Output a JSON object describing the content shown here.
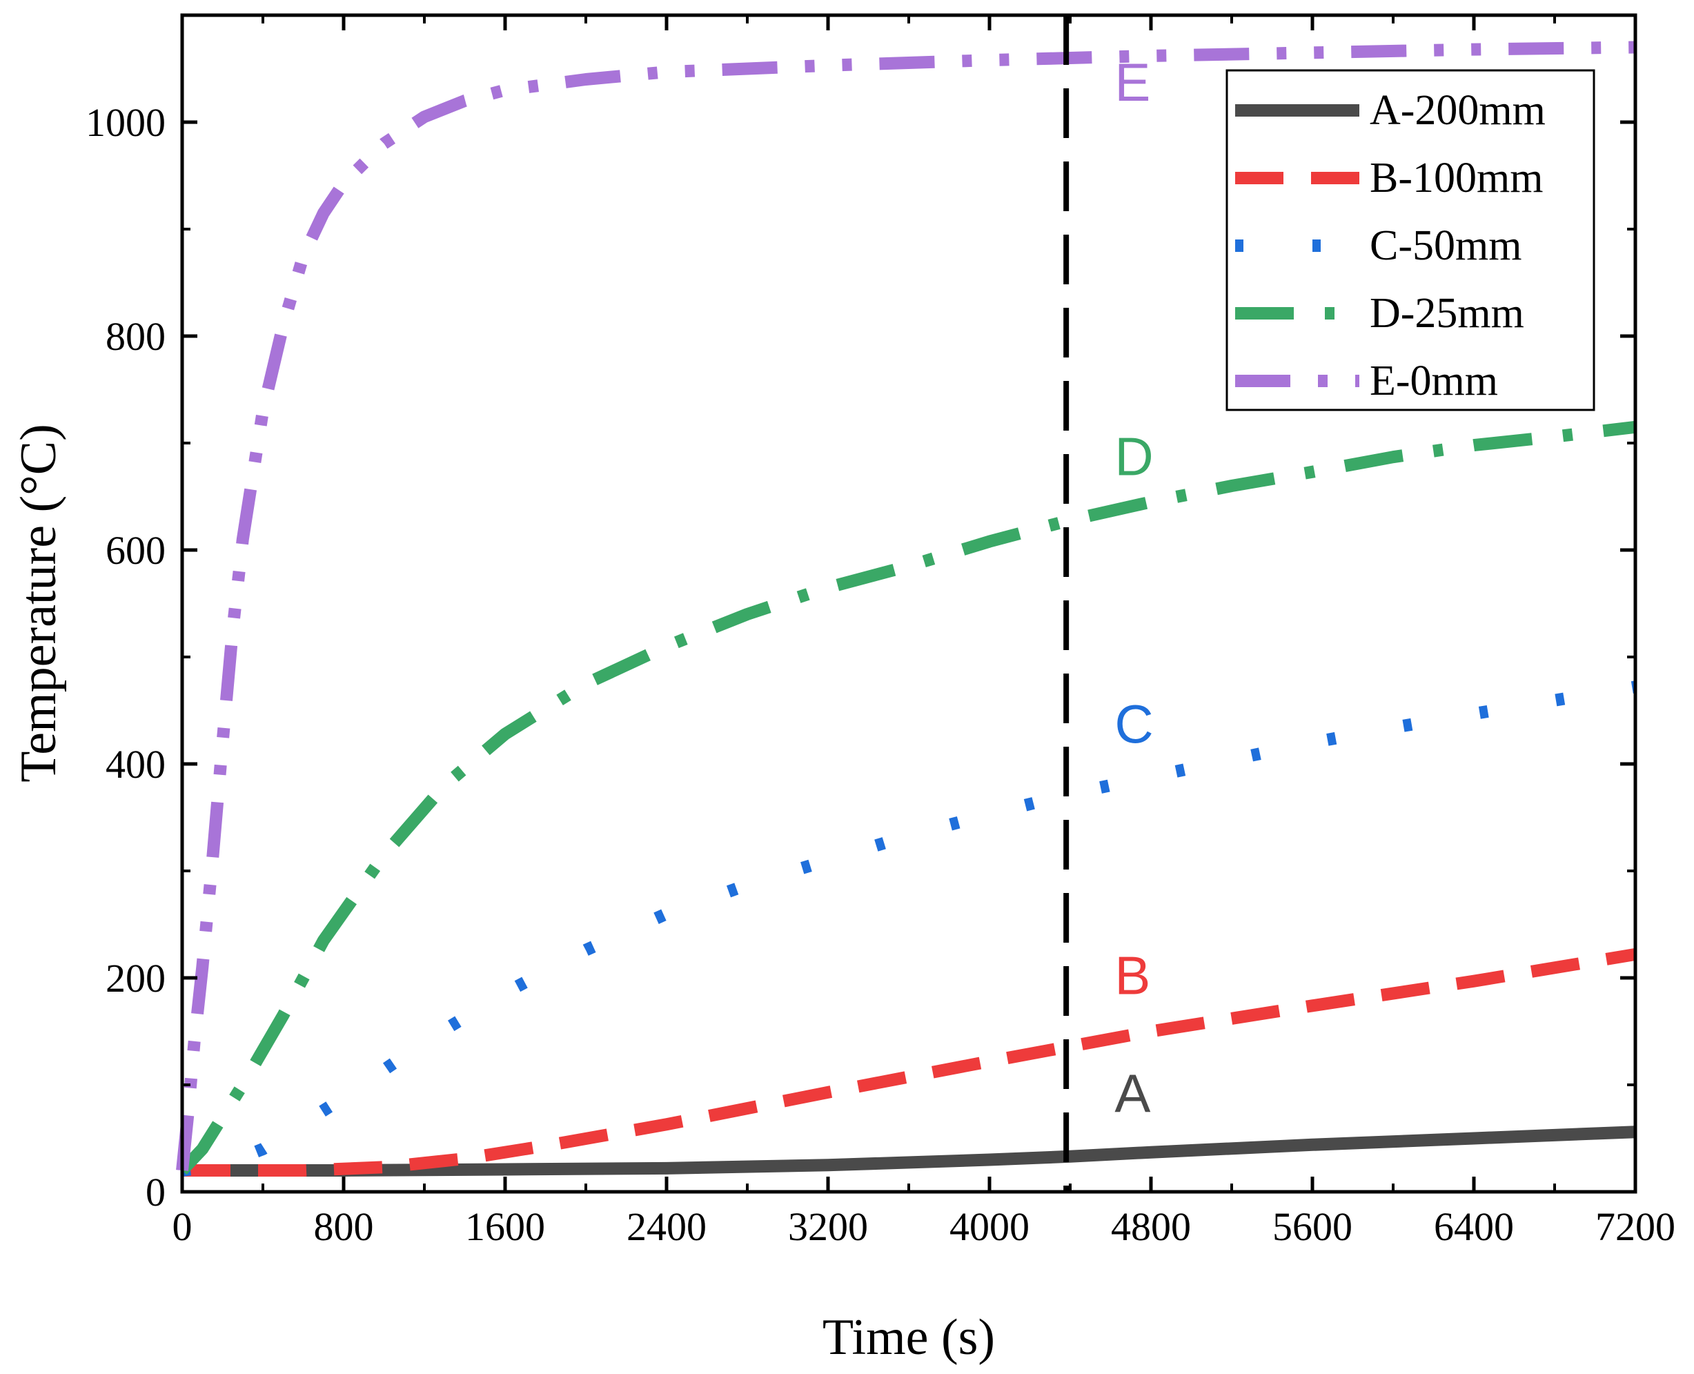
{
  "chart_data": {
    "type": "line",
    "title": "",
    "xlabel": "Time (s)",
    "ylabel": "Temperature (°C)",
    "xlim": [
      0,
      7200
    ],
    "ylim": [
      0,
      1100
    ],
    "xticks": [
      0,
      800,
      1600,
      2400,
      3200,
      4000,
      4800,
      5600,
      6400,
      7200
    ],
    "yticks": [
      0,
      200,
      400,
      600,
      800,
      1000
    ],
    "grid": false,
    "legend_position": "top-right",
    "reference_line": {
      "x": 4380,
      "style": "dashed",
      "color": "#000000"
    },
    "series": [
      {
        "name": "A-200mm",
        "label": "A",
        "color": "#4a4a4a",
        "dash": "solid",
        "label_at": [
          4620,
          75
        ],
        "x": [
          0,
          800,
          1600,
          2400,
          3200,
          4000,
          4400,
          4800,
          5600,
          6400,
          7200
        ],
        "y": [
          20,
          20,
          21,
          22,
          25,
          30,
          33,
          37,
          44,
          50,
          56
        ]
      },
      {
        "name": "B-100mm",
        "label": "B",
        "color": "#ee3b3b",
        "dash": "long-dash",
        "label_at": [
          4620,
          185
        ],
        "x": [
          0,
          300,
          600,
          1000,
          1400,
          1800,
          2400,
          3200,
          4000,
          4400,
          4800,
          5600,
          6400,
          7200
        ],
        "y": [
          20,
          20,
          20,
          23,
          31,
          43,
          63,
          93,
          122,
          136,
          150,
          174,
          197,
          222
        ]
      },
      {
        "name": "C-50mm",
        "label": "C",
        "color": "#1f6fdb",
        "dash": "dot",
        "label_at": [
          4620,
          420
        ],
        "x": [
          0,
          200,
          400,
          800,
          1200,
          1600,
          2000,
          2400,
          2800,
          3200,
          3600,
          4000,
          4400,
          4800,
          5200,
          5600,
          6000,
          6400,
          7200
        ],
        "y": [
          20,
          25,
          40,
          88,
          140,
          186,
          226,
          260,
          287,
          310,
          333,
          353,
          372,
          388,
          404,
          420,
          434,
          447,
          472
        ]
      },
      {
        "name": "D-25mm",
        "label": "D",
        "color": "#3aa866",
        "dash": "dash-dot",
        "label_at": [
          4620,
          670
        ],
        "x": [
          0,
          100,
          200,
          300,
          500,
          700,
          1000,
          1300,
          1600,
          2000,
          2400,
          2800,
          3200,
          3600,
          4000,
          4400,
          4800,
          5200,
          5600,
          6000,
          6400,
          6800,
          7200
        ],
        "y": [
          20,
          40,
          70,
          100,
          165,
          235,
          315,
          380,
          428,
          475,
          510,
          540,
          565,
          585,
          608,
          628,
          645,
          660,
          673,
          687,
          698,
          706,
          715
        ]
      },
      {
        "name": "E-0mm",
        "label": "E",
        "color": "#a874d8",
        "dash": "dash-dot-dot",
        "label_at": [
          4620,
          1020
        ],
        "x": [
          0,
          30,
          60,
          100,
          150,
          200,
          250,
          300,
          400,
          500,
          600,
          700,
          800,
          1000,
          1200,
          1400,
          1600,
          2000,
          2400,
          3200,
          4000,
          4800,
          5600,
          6400,
          7200
        ],
        "y": [
          20,
          75,
          140,
          210,
          310,
          420,
          525,
          610,
          730,
          810,
          875,
          915,
          943,
          980,
          1005,
          1020,
          1030,
          1040,
          1047,
          1053,
          1058,
          1062,
          1065,
          1068,
          1070
        ]
      }
    ]
  }
}
